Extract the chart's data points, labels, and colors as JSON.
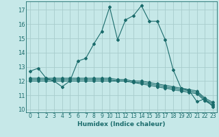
{
  "xlabel": "Humidex (Indice chaleur)",
  "background_color": "#c6e8e8",
  "grid_color": "#a8cccc",
  "line_color": "#1a6b6b",
  "xlim": [
    -0.5,
    23.5
  ],
  "ylim": [
    9.8,
    17.6
  ],
  "yticks": [
    10,
    11,
    12,
    13,
    14,
    15,
    16,
    17
  ],
  "xticks": [
    0,
    1,
    2,
    3,
    4,
    5,
    6,
    7,
    8,
    9,
    10,
    11,
    12,
    13,
    14,
    15,
    16,
    17,
    18,
    19,
    20,
    21,
    22,
    23
  ],
  "series1_x": [
    0,
    1,
    2,
    3,
    4,
    5,
    6,
    7,
    8,
    9,
    10,
    11,
    12,
    13,
    14,
    15,
    16,
    17,
    18,
    19,
    20,
    21,
    22,
    23
  ],
  "series1_y": [
    12.7,
    12.9,
    12.2,
    12.0,
    11.6,
    12.0,
    13.4,
    13.6,
    14.6,
    15.5,
    17.2,
    14.9,
    16.3,
    16.6,
    17.3,
    16.2,
    16.2,
    14.9,
    12.8,
    11.5,
    11.35,
    10.55,
    10.75,
    10.2
  ],
  "series2_x": [
    0,
    1,
    2,
    3,
    4,
    5,
    6,
    7,
    8,
    9,
    10,
    11,
    12,
    13,
    14,
    15,
    16,
    17,
    18,
    19,
    20,
    21,
    22,
    23
  ],
  "series2_y": [
    12.0,
    12.0,
    12.0,
    12.0,
    12.0,
    12.0,
    12.0,
    12.0,
    12.0,
    12.0,
    12.0,
    12.0,
    12.0,
    11.9,
    11.8,
    11.7,
    11.6,
    11.5,
    11.4,
    11.3,
    11.2,
    11.1,
    10.6,
    10.3
  ],
  "series3_x": [
    0,
    1,
    2,
    3,
    4,
    5,
    6,
    7,
    8,
    9,
    10,
    11,
    12,
    13,
    14,
    15,
    16,
    17,
    18,
    19,
    20,
    21,
    22,
    23
  ],
  "series3_y": [
    12.1,
    12.1,
    12.1,
    12.1,
    12.1,
    12.1,
    12.1,
    12.1,
    12.1,
    12.1,
    12.1,
    12.0,
    12.0,
    11.9,
    11.9,
    11.8,
    11.7,
    11.6,
    11.5,
    11.4,
    11.3,
    11.2,
    10.7,
    10.4
  ],
  "series4_x": [
    0,
    1,
    2,
    3,
    4,
    5,
    6,
    7,
    8,
    9,
    10,
    11,
    12,
    13,
    14,
    15,
    16,
    17,
    18,
    19,
    20,
    21,
    22,
    23
  ],
  "series4_y": [
    12.2,
    12.2,
    12.2,
    12.2,
    12.2,
    12.2,
    12.2,
    12.2,
    12.2,
    12.2,
    12.2,
    12.1,
    12.1,
    12.0,
    12.0,
    11.9,
    11.8,
    11.7,
    11.6,
    11.5,
    11.4,
    11.3,
    10.8,
    10.5
  ]
}
